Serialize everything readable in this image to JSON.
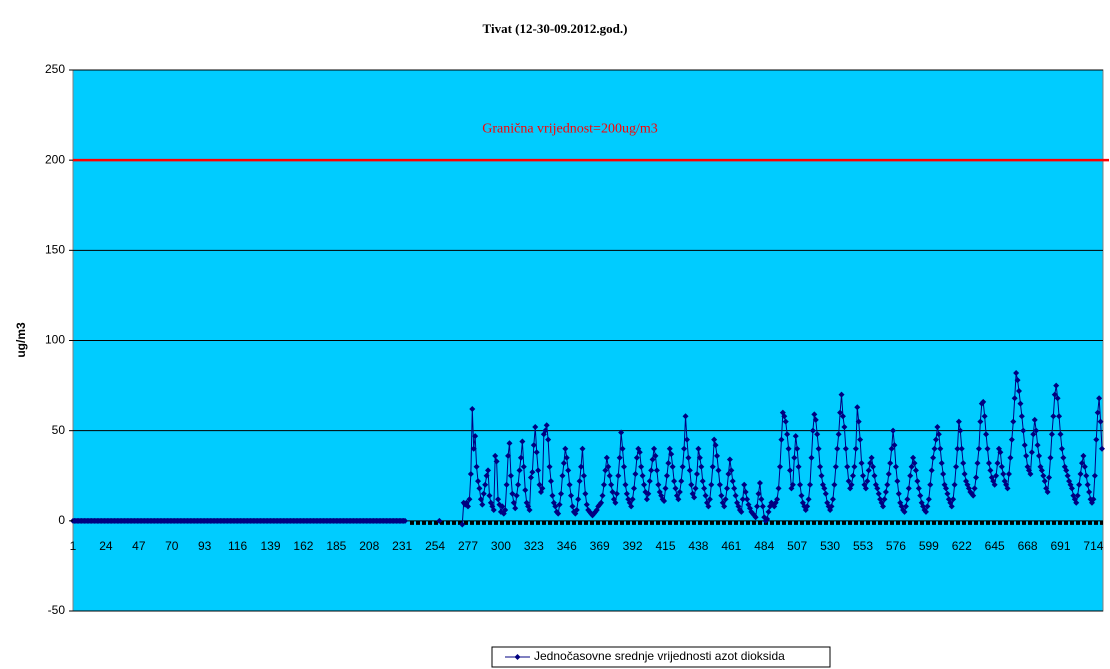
{
  "chart_data": {
    "type": "line",
    "title": "Tivat (12-30-09.2012.god.)",
    "y_label": "ug/m3",
    "annotation": "Granična vrijednost=200ug/m3",
    "threshold": 200,
    "threshold_color": "#ff0000",
    "ylim": [
      -50,
      250
    ],
    "yticks": [
      -50,
      0,
      50,
      100,
      150,
      200,
      250
    ],
    "grid": true,
    "background": "#00ccff",
    "categories": [
      "1",
      null,
      null,
      null,
      null,
      null,
      null,
      null,
      null,
      null,
      null,
      null,
      null,
      null,
      null,
      null,
      null,
      null,
      null,
      null,
      null,
      null,
      null,
      "24",
      null,
      null,
      null,
      null,
      null,
      null,
      null,
      null,
      null,
      null,
      null,
      null,
      null,
      null,
      null,
      null,
      null,
      null,
      null,
      null,
      null,
      null,
      "47",
      null,
      null,
      null,
      null,
      null,
      null,
      null,
      null,
      null,
      null,
      null,
      null,
      null,
      null,
      null,
      null,
      null,
      null,
      null,
      null,
      null,
      null,
      "70",
      null,
      null,
      null,
      null,
      null,
      null,
      null,
      null,
      null,
      null,
      null,
      null,
      null,
      null,
      null,
      null,
      null,
      null,
      null,
      null,
      null,
      null,
      "93",
      null,
      null,
      null,
      null,
      null,
      null,
      null,
      null,
      null,
      null,
      null,
      null,
      null,
      null,
      null,
      null,
      null,
      null,
      null,
      null,
      null,
      null,
      "116",
      null,
      null,
      null,
      null,
      null,
      null,
      null,
      null,
      null,
      null,
      null,
      null,
      null,
      null,
      null,
      null,
      null,
      null,
      null,
      null,
      null,
      null,
      "139",
      null,
      null,
      null,
      null,
      null,
      null,
      null,
      null,
      null,
      null,
      null,
      null,
      null,
      null,
      null,
      null,
      null,
      null,
      null,
      null,
      null,
      null,
      "162",
      null,
      null,
      null,
      null,
      null,
      null,
      null,
      null,
      null,
      null,
      null,
      null,
      null,
      null,
      null,
      null,
      null,
      null,
      null,
      null,
      null,
      null,
      "185",
      null,
      null,
      null,
      null,
      null,
      null,
      null,
      null,
      null,
      null,
      null,
      null,
      null,
      null,
      null,
      null,
      null,
      null,
      null,
      null,
      null,
      null,
      "208",
      null,
      null,
      null,
      null,
      null,
      null,
      null,
      null,
      null,
      null,
      null,
      null,
      null,
      null,
      null,
      null,
      null,
      null,
      null,
      null,
      null,
      null,
      "231",
      null,
      null,
      null,
      null,
      null,
      null,
      null,
      null,
      null,
      null,
      null,
      null,
      null,
      null,
      null,
      null,
      null,
      null,
      null,
      null,
      null,
      null,
      "254",
      null,
      null,
      null,
      null,
      null,
      null,
      null,
      null,
      null,
      null,
      null,
      null,
      null,
      null,
      null,
      null,
      null,
      null,
      null,
      null,
      null,
      null,
      "277",
      null,
      null,
      null,
      null,
      null,
      null,
      null,
      null,
      null,
      null,
      null,
      null,
      null,
      null,
      null,
      null,
      null,
      null,
      null,
      null,
      null,
      null,
      "300",
      null,
      null,
      null,
      null,
      null,
      null,
      null,
      null,
      null,
      null,
      null,
      null,
      null,
      null,
      null,
      null,
      null,
      null,
      null,
      null,
      null,
      null,
      "323",
      null,
      null,
      null,
      null,
      null,
      null,
      null,
      null,
      null,
      null,
      null,
      null,
      null,
      null,
      null,
      null,
      null,
      null,
      null,
      null,
      null,
      null,
      "346",
      null,
      null,
      null,
      null,
      null,
      null,
      null,
      null,
      null,
      null,
      null,
      null,
      null,
      null,
      null,
      null,
      null,
      null,
      null,
      null,
      null,
      null,
      "369",
      null,
      null,
      null,
      null,
      null,
      null,
      null,
      null,
      null,
      null,
      null,
      null,
      null,
      null,
      null,
      null,
      null,
      null,
      null,
      null,
      null,
      null,
      "392",
      null,
      null,
      null,
      null,
      null,
      null,
      null,
      null,
      null,
      null,
      null,
      null,
      null,
      null,
      null,
      null,
      null,
      null,
      null,
      null,
      null,
      null,
      "415",
      null,
      null,
      null,
      null,
      null,
      null,
      null,
      null,
      null,
      null,
      null,
      null,
      null,
      null,
      null,
      null,
      null,
      null,
      null,
      null,
      null,
      null,
      "438",
      null,
      null,
      null,
      null,
      null,
      null,
      null,
      null,
      null,
      null,
      null,
      null,
      null,
      null,
      null,
      null,
      null,
      null,
      null,
      null,
      null,
      null,
      "461",
      null,
      null,
      null,
      null,
      null,
      null,
      null,
      null,
      null,
      null,
      null,
      null,
      null,
      null,
      null,
      null,
      null,
      null,
      null,
      null,
      null,
      null,
      "484",
      null,
      null,
      null,
      null,
      null,
      null,
      null,
      null,
      null,
      null,
      null,
      null,
      null,
      null,
      null,
      null,
      null,
      null,
      null,
      null,
      null,
      null,
      "507",
      null,
      null,
      null,
      null,
      null,
      null,
      null,
      null,
      null,
      null,
      null,
      null,
      null,
      null,
      null,
      null,
      null,
      null,
      null,
      null,
      null,
      null,
      "530",
      null,
      null,
      null,
      null,
      null,
      null,
      null,
      null,
      null,
      null,
      null,
      null,
      null,
      null,
      null,
      null,
      null,
      null,
      null,
      null,
      null,
      null,
      "553",
      null,
      null,
      null,
      null,
      null,
      null,
      null,
      null,
      null,
      null,
      null,
      null,
      null,
      null,
      null,
      null,
      null,
      null,
      null,
      null,
      null,
      null,
      "576",
      null,
      null,
      null,
      null,
      null,
      null,
      null,
      null,
      null,
      null,
      null,
      null,
      null,
      null,
      null,
      null,
      null,
      null,
      null,
      null,
      null,
      null,
      "599",
      null,
      null,
      null,
      null,
      null,
      null,
      null,
      null,
      null,
      null,
      null,
      null,
      null,
      null,
      null,
      null,
      null,
      null,
      null,
      null,
      null,
      null,
      "622",
      null,
      null,
      null,
      null,
      null,
      null,
      null,
      null,
      null,
      null,
      null,
      null,
      null,
      null,
      null,
      null,
      null,
      null,
      null,
      null,
      null,
      null,
      "645",
      null,
      null,
      null,
      null,
      null,
      null,
      null,
      null,
      null,
      null,
      null,
      null,
      null,
      null,
      null,
      null,
      null,
      null,
      null,
      null,
      null,
      null,
      "668",
      null,
      null,
      null,
      null,
      null,
      null,
      null,
      null,
      null,
      null,
      null,
      null,
      null,
      null,
      null,
      null,
      null,
      null,
      null,
      null,
      null,
      null,
      "691",
      null,
      null,
      null,
      null,
      null,
      null,
      null,
      null,
      null,
      null,
      null,
      null,
      null,
      null,
      null,
      null,
      null,
      null,
      null,
      null,
      null,
      null,
      "714",
      null,
      null,
      null,
      null,
      null,
      null
    ],
    "series": [
      {
        "name": "Jednočasovne srednje vrijednosti azot dioksida",
        "color": "#000080",
        "values": [
          0,
          0,
          0,
          0,
          0,
          0,
          0,
          0,
          0,
          0,
          0,
          0,
          0,
          0,
          0,
          0,
          0,
          0,
          0,
          0,
          0,
          0,
          0,
          0,
          0,
          0,
          0,
          0,
          0,
          0,
          0,
          0,
          0,
          0,
          0,
          0,
          0,
          0,
          0,
          0,
          0,
          0,
          0,
          0,
          0,
          0,
          0,
          0,
          0,
          0,
          0,
          0,
          0,
          0,
          0,
          0,
          0,
          0,
          0,
          0,
          0,
          0,
          0,
          0,
          0,
          0,
          0,
          0,
          0,
          0,
          0,
          0,
          0,
          0,
          0,
          0,
          0,
          0,
          0,
          0,
          0,
          0,
          0,
          0,
          0,
          0,
          0,
          0,
          0,
          0,
          0,
          0,
          0,
          0,
          0,
          0,
          0,
          0,
          0,
          0,
          0,
          0,
          0,
          0,
          0,
          0,
          0,
          0,
          0,
          0,
          0,
          0,
          0,
          0,
          0,
          0,
          0,
          0,
          0,
          0,
          0,
          0,
          0,
          0,
          0,
          0,
          0,
          0,
          0,
          0,
          0,
          0,
          0,
          0,
          0,
          0,
          0,
          0,
          0,
          0,
          0,
          0,
          0,
          0,
          0,
          0,
          0,
          0,
          0,
          0,
          0,
          0,
          0,
          0,
          0,
          0,
          0,
          0,
          0,
          0,
          0,
          0,
          0,
          0,
          0,
          0,
          0,
          0,
          0,
          0,
          0,
          0,
          0,
          0,
          0,
          0,
          0,
          0,
          0,
          0,
          0,
          0,
          0,
          0,
          0,
          0,
          0,
          0,
          0,
          0,
          0,
          0,
          0,
          0,
          0,
          0,
          0,
          0,
          0,
          0,
          0,
          0,
          0,
          0,
          0,
          0,
          0,
          0,
          0,
          0,
          0,
          0,
          0,
          0,
          0,
          0,
          0,
          0,
          0,
          0,
          0,
          0,
          0,
          0,
          0,
          0,
          0,
          0,
          0,
          0,
          0,
          0,
          0,
          null,
          null,
          null,
          null,
          null,
          null,
          null,
          null,
          null,
          null,
          null,
          null,
          null,
          null,
          null,
          null,
          null,
          null,
          null,
          null,
          null,
          null,
          null,
          0,
          null,
          null,
          null,
          null,
          null,
          null,
          null,
          null,
          null,
          null,
          null,
          null,
          null,
          null,
          null,
          -2,
          10,
          9,
          10,
          8,
          12,
          26,
          62,
          40,
          47,
          30,
          22,
          18,
          12,
          9,
          15,
          20,
          25,
          28,
          14,
          10,
          8,
          6,
          36,
          33,
          12,
          9,
          5,
          8,
          4,
          6,
          20,
          36,
          43,
          25,
          15,
          10,
          7,
          14,
          20,
          28,
          35,
          44,
          30,
          17,
          10,
          8,
          6,
          24,
          27,
          42,
          52,
          38,
          28,
          20,
          16,
          18,
          48,
          50,
          53,
          45,
          30,
          22,
          14,
          10,
          8,
          5,
          4,
          9,
          15,
          25,
          32,
          40,
          35,
          28,
          20,
          14,
          8,
          5,
          4,
          6,
          12,
          22,
          30,
          40,
          25,
          15,
          9,
          6,
          5,
          4,
          3,
          4,
          5,
          6,
          8,
          9,
          10,
          14,
          20,
          28,
          35,
          30,
          25,
          20,
          16,
          12,
          10,
          15,
          25,
          35,
          49,
          40,
          30,
          20,
          15,
          12,
          10,
          8,
          12,
          18,
          26,
          35,
          40,
          38,
          30,
          25,
          20,
          16,
          12,
          15,
          22,
          28,
          34,
          40,
          36,
          28,
          20,
          16,
          14,
          12,
          11,
          18,
          25,
          32,
          40,
          37,
          30,
          22,
          18,
          14,
          12,
          16,
          22,
          30,
          40,
          58,
          45,
          35,
          28,
          20,
          15,
          13,
          18,
          26,
          40,
          35,
          30,
          22,
          18,
          14,
          10,
          8,
          12,
          20,
          30,
          45,
          42,
          36,
          28,
          20,
          14,
          10,
          8,
          12,
          18,
          26,
          34,
          28,
          22,
          18,
          14,
          10,
          8,
          6,
          5,
          12,
          20,
          16,
          12,
          9,
          7,
          5,
          4,
          3,
          2,
          8,
          15,
          21,
          12,
          8,
          2,
          0,
          1,
          5,
          8,
          10,
          9,
          8,
          10,
          12,
          18,
          30,
          45,
          60,
          58,
          55,
          48,
          40,
          28,
          18,
          20,
          35,
          47,
          40,
          30,
          20,
          14,
          10,
          8,
          6,
          8,
          12,
          20,
          35,
          50,
          59,
          56,
          48,
          40,
          30,
          25,
          20,
          18,
          15,
          10,
          8,
          6,
          8,
          12,
          20,
          30,
          40,
          48,
          60,
          70,
          58,
          52,
          40,
          30,
          22,
          18,
          20,
          25,
          30,
          40,
          63,
          55,
          45,
          32,
          25,
          20,
          18,
          22,
          28,
          32,
          35,
          30,
          25,
          20,
          18,
          15,
          12,
          10,
          8,
          12,
          16,
          20,
          26,
          32,
          40,
          50,
          42,
          30,
          22,
          15,
          10,
          8,
          6,
          5,
          8,
          12,
          18,
          25,
          30,
          35,
          32,
          28,
          22,
          18,
          14,
          10,
          8,
          6,
          5,
          8,
          12,
          20,
          28,
          35,
          40,
          45,
          52,
          48,
          40,
          32,
          26,
          20,
          18,
          15,
          12,
          10,
          8,
          12,
          20,
          30,
          40,
          55,
          50,
          40,
          32,
          26,
          22,
          20,
          18,
          16,
          15,
          14,
          18,
          24,
          32,
          40,
          55,
          65,
          66,
          58,
          48,
          40,
          32,
          28,
          24,
          22,
          20,
          25,
          32,
          40,
          38,
          30,
          26,
          22,
          20,
          18,
          26,
          35,
          45,
          55,
          68,
          82,
          78,
          72,
          65,
          58,
          50,
          42,
          36,
          30,
          28,
          26,
          38,
          48,
          56,
          50,
          42,
          36,
          30,
          28,
          25,
          22,
          18,
          16,
          24,
          35,
          48,
          58,
          70,
          75,
          68,
          58,
          48,
          40,
          35,
          30,
          28,
          25,
          22,
          20,
          18,
          14,
          12,
          10,
          14,
          20,
          26,
          32,
          36,
          30,
          25,
          20,
          16,
          12,
          10,
          12,
          25,
          45,
          60,
          68,
          55,
          40
        ]
      }
    ]
  }
}
